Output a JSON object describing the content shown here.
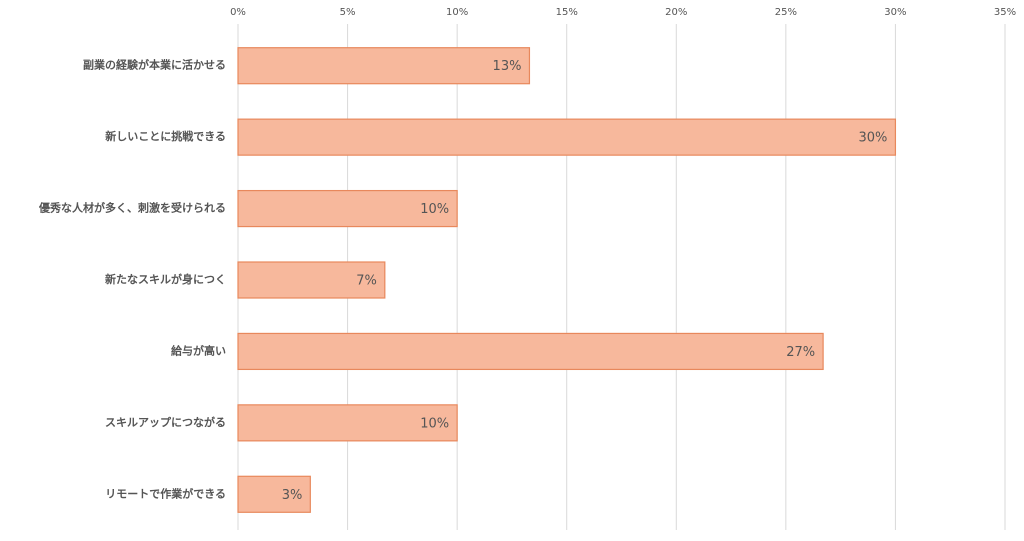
{
  "chart_data": {
    "type": "bar",
    "orientation": "horizontal",
    "categories": [
      "副業の経験が本業に活かせる",
      "新しいことに挑戦できる",
      "優秀な人材が多く、刺激を受けられる",
      "新たなスキルが身につく",
      "給与が高い",
      "スキルアップにつながる",
      "リモートで作業ができる"
    ],
    "values": [
      13.3,
      30,
      10,
      6.7,
      26.7,
      10,
      3.3
    ],
    "value_labels": [
      "13%",
      "30%",
      "10%",
      "7%",
      "27%",
      "10%",
      "3%"
    ],
    "color": "#f7b89c",
    "xlim": [
      0,
      35
    ],
    "xticks": [
      {
        "value": 0,
        "label": "0%"
      },
      {
        "value": 5,
        "label": "5%"
      },
      {
        "value": 10,
        "label": "10%"
      },
      {
        "value": 15,
        "label": "15%"
      },
      {
        "value": 20,
        "label": "20%"
      },
      {
        "value": 25,
        "label": "25%"
      },
      {
        "value": 30,
        "label": "30%"
      },
      {
        "value": 35,
        "label": "35%"
      }
    ],
    "grid": true
  }
}
